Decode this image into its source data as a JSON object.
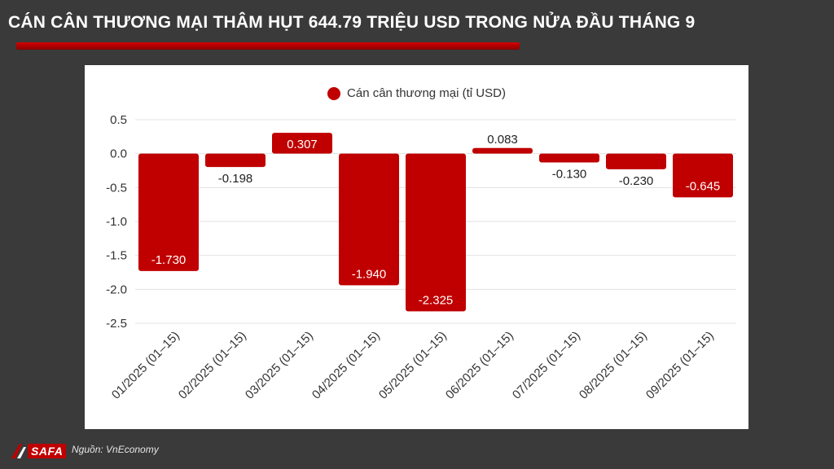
{
  "header": {
    "title": "CÁN CÂN THƯƠNG MẠI THÂM HỤT 644.79 TRIỆU USD TRONG NỬA ĐẦU THÁNG 9"
  },
  "footer": {
    "source": "Nguồn: VnEconomy",
    "logo_text": "SAFA"
  },
  "colors": {
    "background": "#3a3a3a",
    "bar": "#c00000",
    "accent": "#d40000"
  },
  "chart_data": {
    "type": "bar",
    "categories": [
      "01/2025 (01–15)",
      "02/2025 (01–15)",
      "03/2025 (01–15)",
      "04/2025 (01–15)",
      "05/2025 (01–15)",
      "06/2025 (01–15)",
      "07/2025 (01–15)",
      "08/2025 (01–15)",
      "09/2025 (01–15)"
    ],
    "series": [
      {
        "name": "Cán cân thương mại (tỉ USD)",
        "values": [
          -1.73,
          -0.198,
          0.307,
          -1.94,
          -2.325,
          0.083,
          -0.13,
          -0.23,
          -0.645
        ],
        "labels": [
          "-1.730",
          "-0.198",
          "0.307",
          "-1.940",
          "-2.325",
          "0.083",
          "-0.130",
          "-0.230",
          "-0.645"
        ]
      }
    ],
    "yticks": [
      "0.5",
      "0.0",
      "-0.5",
      "-1.0",
      "-1.5",
      "-2.0",
      "-2.5"
    ],
    "ylim": [
      -2.5,
      0.5
    ],
    "grid": true,
    "legend_position": "top-center"
  }
}
